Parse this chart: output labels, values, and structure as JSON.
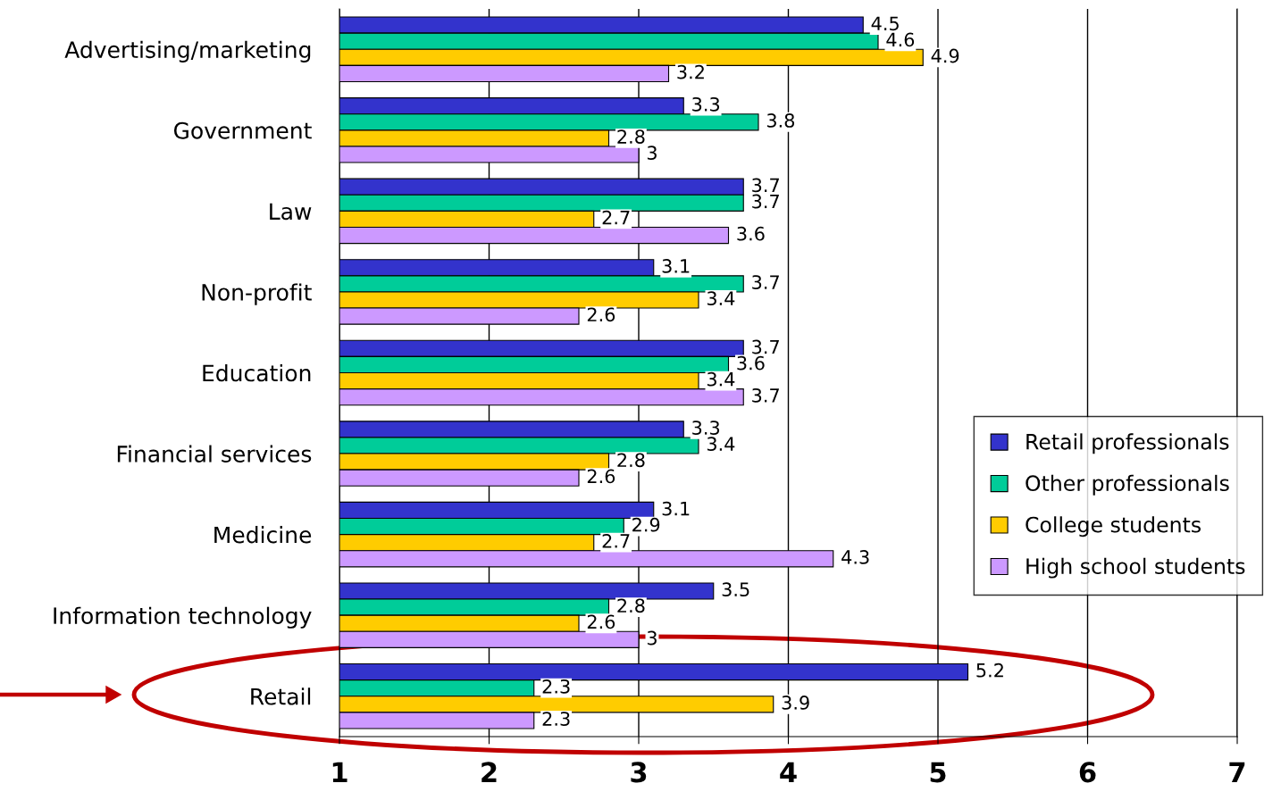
{
  "chart_data": {
    "type": "bar",
    "orientation": "horizontal",
    "categories": [
      "Advertising/marketing",
      "Government",
      "Law",
      "Non-profit",
      "Education",
      "Financial services",
      "Medicine",
      "Information technology",
      "Retail"
    ],
    "series": [
      {
        "name": "Retail professionals",
        "color": "#3333cc",
        "values": [
          4.5,
          3.3,
          3.7,
          3.1,
          3.7,
          3.3,
          3.1,
          3.5,
          5.2
        ]
      },
      {
        "name": "Other professionals",
        "color": "#00cc99",
        "values": [
          4.6,
          3.8,
          3.7,
          3.7,
          3.6,
          3.4,
          2.9,
          2.8,
          2.3
        ]
      },
      {
        "name": "College students",
        "color": "#ffcc00",
        "values": [
          4.9,
          2.8,
          2.7,
          3.4,
          3.4,
          2.8,
          2.7,
          2.6,
          3.9
        ]
      },
      {
        "name": "High school students",
        "color": "#cc99ff",
        "values": [
          3.2,
          3,
          3.6,
          2.6,
          3.7,
          2.6,
          4.3,
          3,
          2.3
        ]
      }
    ],
    "xlim": [
      1,
      7
    ],
    "xticks": [
      1,
      2,
      3,
      4,
      5,
      6,
      7
    ],
    "grid": "x",
    "legend": "right",
    "data_labels": true
  }
}
